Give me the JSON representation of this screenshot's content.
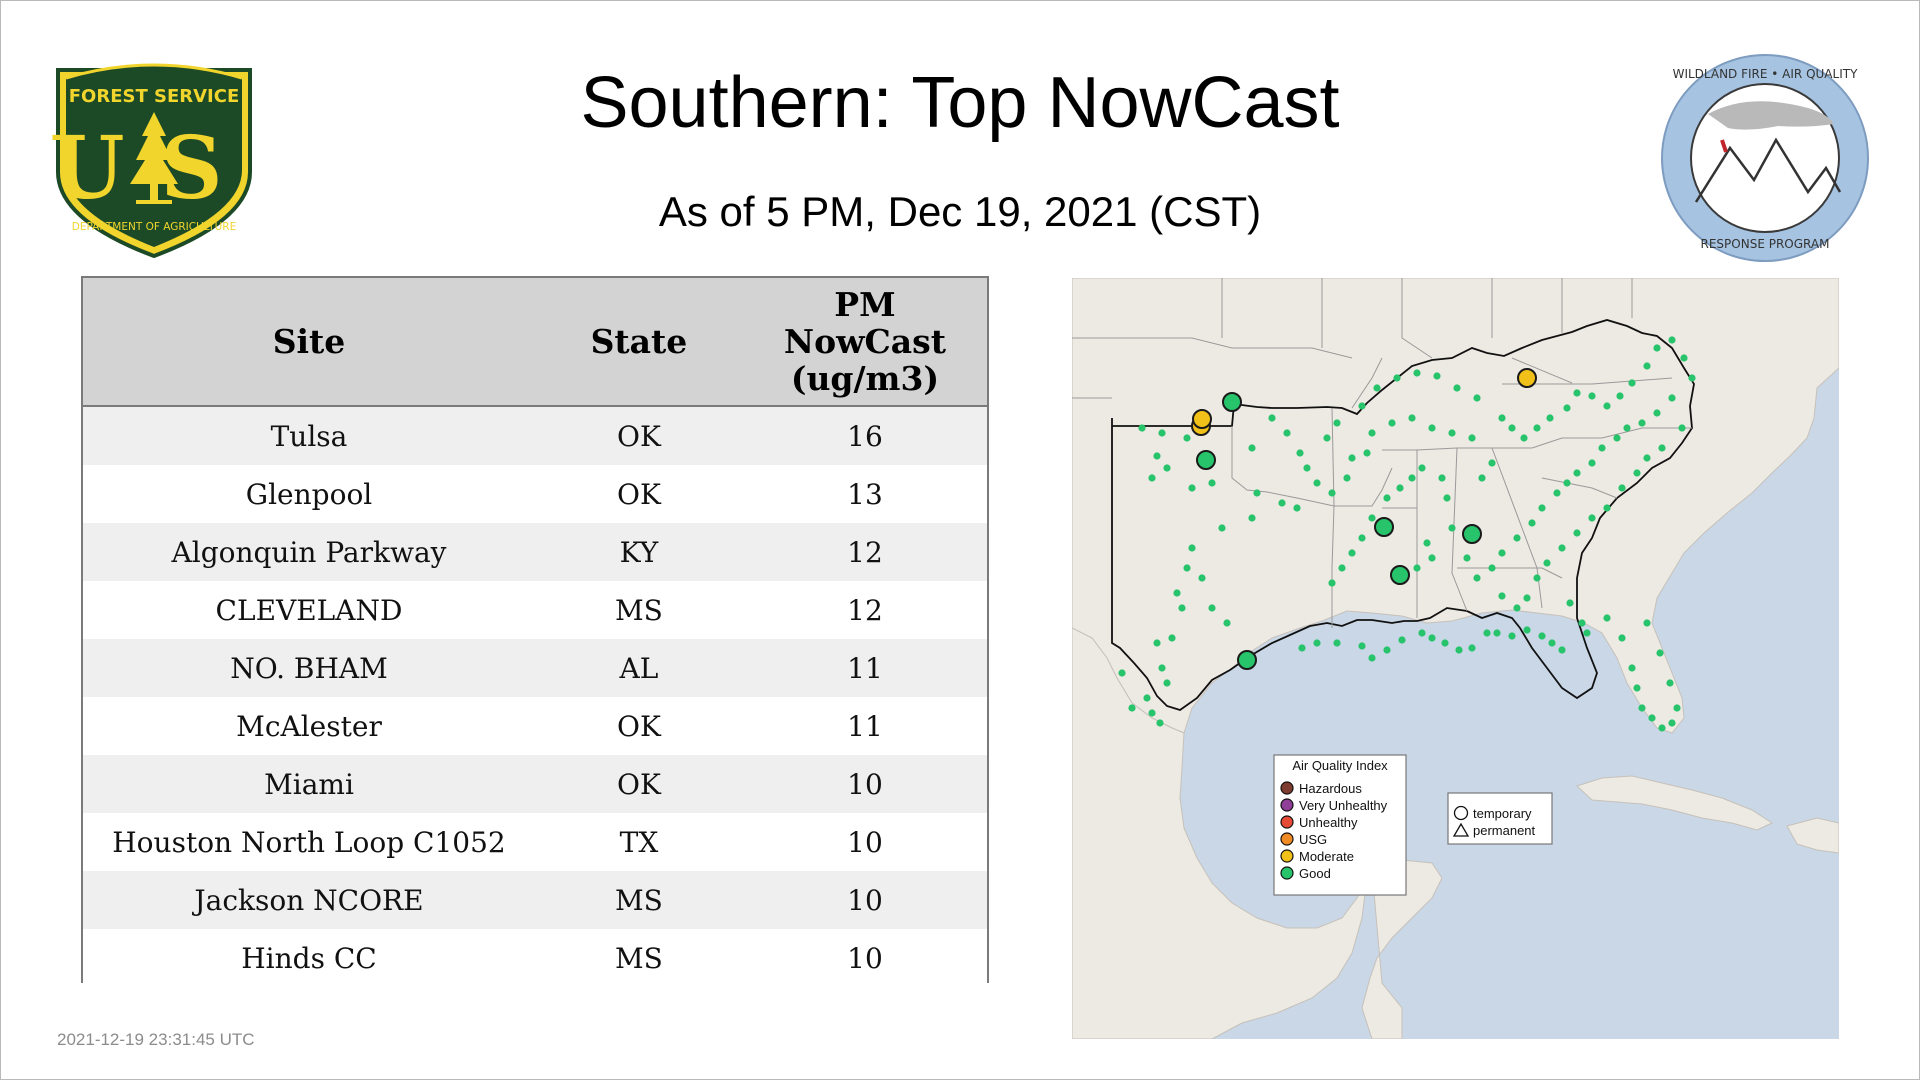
{
  "title": "Southern: Top NowCast",
  "subtitle": "As of  5 PM, Dec 19, 2021 (CST)",
  "logo_left": {
    "text_top": "FOREST SERVICE",
    "text_mid": "US",
    "text_bottom": "DEPARTMENT OF AGRICULTURE"
  },
  "logo_right": {
    "text_top": "WILDLAND FIRE • AIR QUALITY",
    "text_bottom": "RESPONSE PROGRAM"
  },
  "table": {
    "headers": {
      "site": "Site",
      "state": "State",
      "pm_line1": "PM",
      "pm_line2": "NowCast",
      "pm_line3": "(ug/m3)"
    },
    "rows": [
      {
        "site": "Tulsa",
        "state": "OK",
        "pm": "16"
      },
      {
        "site": "Glenpool",
        "state": "OK",
        "pm": "13"
      },
      {
        "site": "Algonquin Parkway",
        "state": "KY",
        "pm": "12"
      },
      {
        "site": "CLEVELAND",
        "state": "MS",
        "pm": "12"
      },
      {
        "site": "NO. BHAM",
        "state": "AL",
        "pm": "11"
      },
      {
        "site": "McAlester",
        "state": "OK",
        "pm": "11"
      },
      {
        "site": "Miami",
        "state": "OK",
        "pm": "10"
      },
      {
        "site": "Houston North Loop C1052",
        "state": "TX",
        "pm": "10"
      },
      {
        "site": "Jackson NCORE",
        "state": "MS",
        "pm": "10"
      },
      {
        "site": "Hinds CC",
        "state": "MS",
        "pm": "10"
      }
    ]
  },
  "map_legend": {
    "title": "Air Quality Index",
    "items": [
      {
        "label": "Hazardous",
        "color": "#7e3b30"
      },
      {
        "label": "Very Unhealthy",
        "color": "#8f3f97"
      },
      {
        "label": "Unhealthy",
        "color": "#e64b35"
      },
      {
        "label": "USG",
        "color": "#f08a24"
      },
      {
        "label": "Moderate",
        "color": "#f2c119"
      },
      {
        "label": "Good",
        "color": "#27c46c"
      }
    ],
    "shape_items": [
      {
        "label": "temporary",
        "shape": "circle"
      },
      {
        "label": "permanent",
        "shape": "triangle"
      }
    ]
  },
  "colors": {
    "header_bg": "#d3d3d3",
    "row_alt": "#efefef",
    "water": "#c9d7e6",
    "land": "#ede9e3",
    "good": "#27c46c",
    "moderate": "#f2c119",
    "fs_green": "#1c4a26",
    "fs_yellow": "#f1d52d"
  },
  "timestamp": "2021-12-19 23:31:45 UTC"
}
